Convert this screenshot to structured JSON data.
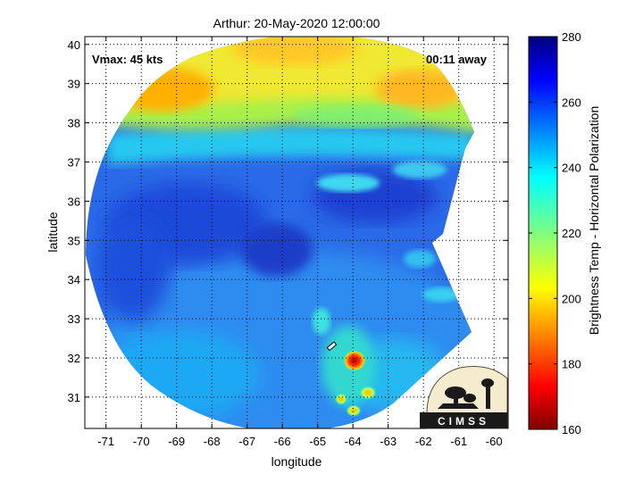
{
  "title": "Arthur: 20-May-2020 12:00:00",
  "annotations": {
    "vmax": "Vmax: 45 kts",
    "time_away": "00:11 away"
  },
  "map": {
    "xlabel": "longitude",
    "ylabel": "latitude",
    "xlim": [
      -71.6,
      -59.6
    ],
    "ylim": [
      30.2,
      40.2
    ],
    "xticks": [
      -71,
      -70,
      -69,
      -68,
      -67,
      -66,
      -65,
      -64,
      -63,
      -62,
      -61,
      -60
    ],
    "yticks": [
      31,
      32,
      33,
      34,
      35,
      36,
      37,
      38,
      39,
      40
    ],
    "grid": "dotted",
    "storm_center": {
      "lon": -64.6,
      "lat": 32.3
    },
    "cold_cores": [
      {
        "lon": -63.9,
        "lat": 31.9,
        "tb": 185
      },
      {
        "lon": -63.8,
        "lat": 31.1,
        "tb": 205
      },
      {
        "lon": -64.0,
        "lat": 30.6,
        "tb": 200
      },
      {
        "lon": -64.4,
        "lat": 30.9,
        "tb": 215
      }
    ]
  },
  "colorbar": {
    "label": "Brightness Temp - Horizontal Polarization",
    "min": 160,
    "max": 280,
    "ticks": [
      160,
      180,
      200,
      220,
      240,
      260,
      280
    ],
    "colormap": "jet"
  },
  "logo": {
    "text": "CIMSS",
    "icon": "cimss-logo-icon"
  }
}
